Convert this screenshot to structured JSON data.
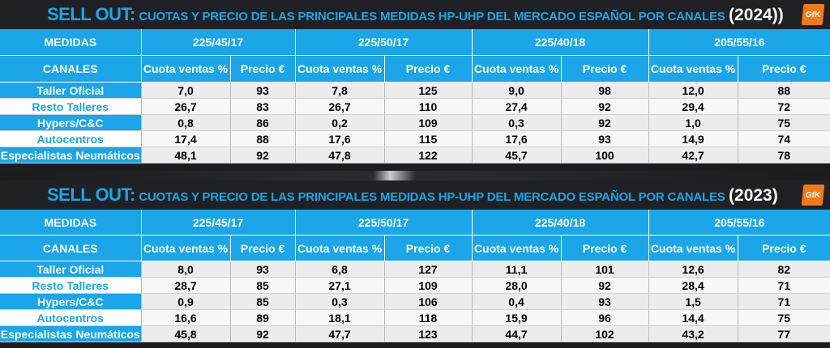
{
  "tables": [
    {
      "title_main": "SELL OUT:",
      "title_sub": "CUOTAS Y PRECIO DE LAS PRINCIPALES MEDIDAS HP-UHP DEL MERCADO ESPAÑOL POR CANALES",
      "title_year": "(2024))",
      "logo": "GfK",
      "medidas_label": "MEDIDAS",
      "canales_label": "CANALES",
      "sizes": [
        "225/45/17",
        "225/50/17",
        "225/40/18",
        "205/55/16"
      ],
      "col_cuota": "Cuota ventas %",
      "col_precio": "Precio €",
      "rows": [
        {
          "canal": "Taller Oficial",
          "values": [
            "7,0",
            "93",
            "7,8",
            "125",
            "9,0",
            "98",
            "12,0",
            "88"
          ]
        },
        {
          "canal": "Resto Talleres",
          "values": [
            "26,7",
            "83",
            "26,7",
            "110",
            "27,4",
            "92",
            "29,4",
            "72"
          ]
        },
        {
          "canal": "Hypers/C&C",
          "values": [
            "0,8",
            "86",
            "0,2",
            "109",
            "0,3",
            "92",
            "1,0",
            "75"
          ]
        },
        {
          "canal": "Autocentros",
          "values": [
            "17,4",
            "88",
            "17,6",
            "115",
            "17,6",
            "93",
            "14,9",
            "74"
          ]
        },
        {
          "canal": "Especialistas Neumáticos",
          "values": [
            "48,1",
            "92",
            "47,8",
            "122",
            "45,7",
            "100",
            "42,7",
            "78"
          ]
        }
      ]
    },
    {
      "title_main": "SELL OUT:",
      "title_sub": "CUOTAS Y PRECIO DE LAS PRINCIPALES MEDIDAS HP-UHP DEL MERCADO ESPAÑOL POR CANALES",
      "title_year": "(2023)",
      "logo": "GfK",
      "medidas_label": "MEDIDAS",
      "canales_label": "CANALES",
      "sizes": [
        "225/45/17",
        "225/50/17",
        "225/40/18",
        "205/55/16"
      ],
      "col_cuota": "Cuota ventas %",
      "col_precio": "Precio €",
      "rows": [
        {
          "canal": "Taller Oficial",
          "values": [
            "8,0",
            "93",
            "6,8",
            "127",
            "11,1",
            "101",
            "12,6",
            "82"
          ]
        },
        {
          "canal": "Resto Talleres",
          "values": [
            "28,7",
            "85",
            "27,1",
            "109",
            "28,0",
            "92",
            "28,4",
            "71"
          ]
        },
        {
          "canal": "Hypers/C&C",
          "values": [
            "0,9",
            "85",
            "0,3",
            "106",
            "0,4",
            "93",
            "1,5",
            "71"
          ]
        },
        {
          "canal": "Autocentros",
          "values": [
            "16,6",
            "89",
            "18,1",
            "118",
            "15,9",
            "96",
            "14,4",
            "75"
          ]
        },
        {
          "canal": "Especialistas Neumáticos",
          "values": [
            "45,8",
            "92",
            "47,7",
            "123",
            "44,7",
            "102",
            "43,2",
            "77"
          ]
        }
      ]
    }
  ]
}
